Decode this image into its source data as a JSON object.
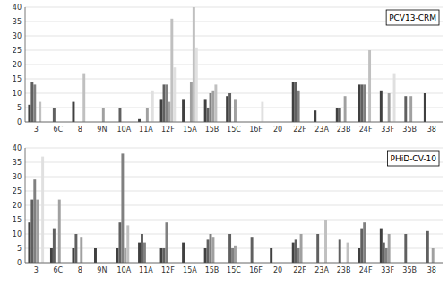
{
  "chart_data": [
    {
      "type": "bar",
      "title": "PCV13-CRM",
      "categories": [
        "3",
        "6C",
        "8",
        "9N",
        "10A",
        "11A",
        "12F",
        "15A",
        "15B",
        "15C",
        "16F",
        "20",
        "22F",
        "23A",
        "23B",
        "24F",
        "33F",
        "35B",
        "38"
      ],
      "series": [
        {
          "color": "#404040",
          "values": [
            6,
            0,
            7,
            0,
            0,
            1,
            8,
            8,
            8,
            9,
            0,
            0,
            14,
            4,
            5,
            13,
            11,
            0,
            10
          ]
        },
        {
          "color": "#606060",
          "values": [
            14,
            5,
            0,
            0,
            5,
            0,
            13,
            0,
            5,
            10,
            0,
            0,
            14,
            0,
            5,
            13,
            0,
            9,
            0
          ]
        },
        {
          "color": "#808080",
          "values": [
            13,
            0,
            0,
            0,
            0,
            0,
            13,
            0,
            10,
            0,
            0,
            0,
            11,
            0,
            0,
            13,
            0,
            0,
            0
          ]
        },
        {
          "color": "#a0a0a0",
          "values": [
            0,
            0,
            0,
            5,
            0,
            5,
            7,
            14,
            11,
            8,
            0,
            0,
            0,
            0,
            9,
            0,
            10,
            9,
            0
          ]
        },
        {
          "color": "#c0c0c0",
          "values": [
            7,
            0,
            17,
            0,
            0,
            0,
            36,
            40,
            13,
            0,
            0,
            0,
            0,
            0,
            0,
            25,
            0,
            0,
            0
          ]
        },
        {
          "color": "#e0e0e0",
          "values": [
            0,
            0,
            0,
            0,
            0,
            11,
            19,
            26,
            0,
            0,
            7,
            0,
            0,
            0,
            0,
            0,
            17,
            0,
            0
          ]
        }
      ],
      "ylim": [
        0,
        40
      ],
      "yticks": [
        0,
        5,
        10,
        15,
        20,
        25,
        30,
        35,
        40
      ],
      "grid": true
    },
    {
      "type": "bar",
      "title": "PHiD-CV-10",
      "categories": [
        "3",
        "6C",
        "8",
        "9N",
        "10A",
        "11A",
        "12F",
        "15A",
        "15B",
        "15C",
        "16F",
        "20",
        "22F",
        "23A",
        "23B",
        "24F",
        "33F",
        "35B",
        "38"
      ],
      "series": [
        {
          "color": "#404040",
          "values": [
            14,
            5,
            5,
            5,
            5,
            7,
            5,
            7,
            5,
            0,
            0,
            5,
            7,
            0,
            0,
            5,
            12,
            0,
            0
          ]
        },
        {
          "color": "#606060",
          "values": [
            22,
            12,
            10,
            0,
            14,
            10,
            5,
            0,
            8,
            10,
            9,
            0,
            8,
            10,
            8,
            12,
            7,
            10,
            11
          ]
        },
        {
          "color": "#808080",
          "values": [
            29,
            0,
            0,
            0,
            38,
            7,
            14,
            0,
            10,
            5,
            0,
            0,
            5,
            0,
            0,
            14,
            5,
            0,
            0
          ]
        },
        {
          "color": "#a0a0a0",
          "values": [
            22,
            22,
            9,
            0,
            5,
            0,
            0,
            0,
            9,
            6,
            0,
            0,
            10,
            0,
            0,
            0,
            10,
            0,
            5
          ]
        },
        {
          "color": "#c0c0c0",
          "values": [
            0,
            0,
            0,
            0,
            13,
            0,
            0,
            0,
            0,
            0,
            0,
            0,
            0,
            15,
            7,
            0,
            0,
            0,
            0
          ]
        },
        {
          "color": "#e0e0e0",
          "values": [
            37,
            0,
            0,
            0,
            0,
            0,
            0,
            0,
            0,
            0,
            0,
            0,
            0,
            0,
            0,
            0,
            0,
            0,
            0
          ]
        }
      ],
      "ylim": [
        0,
        40
      ],
      "yticks": [
        0,
        5,
        10,
        15,
        20,
        25,
        30,
        35,
        40
      ],
      "grid": true
    }
  ]
}
